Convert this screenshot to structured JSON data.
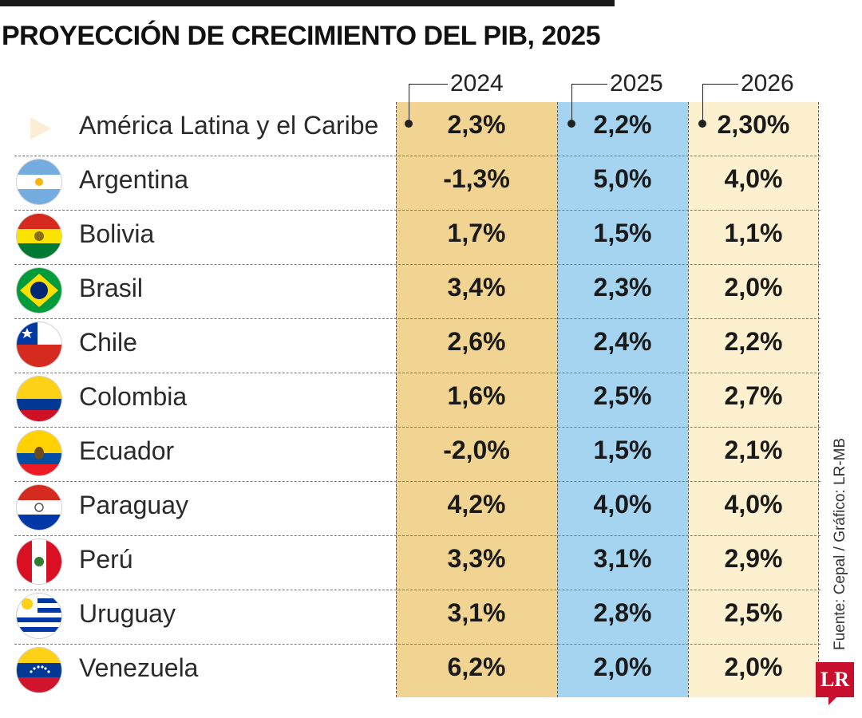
{
  "header": {
    "title": "PROYECCIÓN DE CRECIMIENTO DEL PIB, 2025",
    "source": "Fuente: Cepal / Gráfico: LR-MB",
    "logo_text": "LR"
  },
  "colors": {
    "col_2024": "#f1d392",
    "col_2025": "#a4d4f0",
    "col_2026": "#fdf0cf",
    "brand": "#c8102e"
  },
  "chart_data": {
    "type": "table",
    "title": "PROYECCIÓN DE CRECIMIENTO DEL PIB, 2025",
    "columns": [
      "2024",
      "2025",
      "2026"
    ],
    "rows": [
      {
        "name": "América Latina y el Caribe",
        "flag": "arrow-icon",
        "values": [
          "2,3%",
          "2,2%",
          "2,30%"
        ]
      },
      {
        "name": "Argentina",
        "flag": "argentina-flag-icon",
        "values": [
          "-1,3%",
          "5,0%",
          "4,0%"
        ]
      },
      {
        "name": "Bolivia",
        "flag": "bolivia-flag-icon",
        "values": [
          "1,7%",
          "1,5%",
          "1,1%"
        ]
      },
      {
        "name": "Brasil",
        "flag": "brasil-flag-icon",
        "values": [
          "3,4%",
          "2,3%",
          "2,0%"
        ]
      },
      {
        "name": "Chile",
        "flag": "chile-flag-icon",
        "values": [
          "2,6%",
          "2,4%",
          "2,2%"
        ]
      },
      {
        "name": "Colombia",
        "flag": "colombia-flag-icon",
        "values": [
          "1,6%",
          "2,5%",
          "2,7%"
        ]
      },
      {
        "name": "Ecuador",
        "flag": "ecuador-flag-icon",
        "values": [
          "-2,0%",
          "1,5%",
          "2,1%"
        ]
      },
      {
        "name": "Paraguay",
        "flag": "paraguay-flag-icon",
        "values": [
          "4,2%",
          "4,0%",
          "4,0%"
        ]
      },
      {
        "name": "Perú",
        "flag": "peru-flag-icon",
        "values": [
          "3,3%",
          "3,1%",
          "2,9%"
        ]
      },
      {
        "name": "Uruguay",
        "flag": "uruguay-flag-icon",
        "values": [
          "3,1%",
          "2,8%",
          "2,5%"
        ]
      },
      {
        "name": "Venezuela",
        "flag": "venezuela-flag-icon",
        "values": [
          "6,2%",
          "2,0%",
          "2,0%"
        ]
      }
    ]
  }
}
